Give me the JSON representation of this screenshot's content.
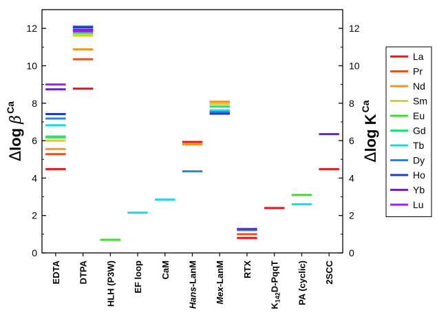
{
  "chart_data": {
    "type": "scatter",
    "marker": "horizontal-dash",
    "categories": [
      "EDTA",
      "DTPA",
      "HLH (P3W)",
      "EF loop",
      "CaM",
      "Hans-LanM",
      "Mex-LanM",
      "RTX",
      "K142D-PqqT",
      "PA (cyclic)",
      "2SCC"
    ],
    "category_italic_prefix": [
      "",
      "",
      "",
      "",
      "",
      "Hans",
      "Mex",
      "",
      "",
      "",
      ""
    ],
    "ylabel_left": {
      "symbol": "Δ",
      "main": "log ",
      "greek": "β",
      "sup": "Ca"
    },
    "ylabel_right": {
      "symbol": "Δ",
      "main": "log K",
      "sup": "Ca"
    },
    "ylim": [
      0,
      13
    ],
    "yticks": [
      0,
      2,
      4,
      6,
      8,
      10,
      12
    ],
    "legend_position": "right",
    "series": [
      {
        "name": "La",
        "color": "#e8141c",
        "values": [
          4.48,
          8.78,
          null,
          null,
          null,
          5.93,
          null,
          0.8,
          2.4,
          null,
          4.48
        ]
      },
      {
        "name": "Pr",
        "color": "#f0501e",
        "values": [
          5.28,
          10.35,
          null,
          null,
          null,
          null,
          null,
          1.0,
          null,
          null,
          null
        ]
      },
      {
        "name": "Nd",
        "color": "#f59420",
        "values": [
          5.55,
          10.88,
          null,
          null,
          null,
          5.8,
          8.08,
          null,
          null,
          null,
          null
        ]
      },
      {
        "name": "Sm",
        "color": "#d4d21a",
        "values": [
          6.0,
          11.62,
          null,
          null,
          null,
          null,
          7.96,
          null,
          null,
          null,
          null
        ]
      },
      {
        "name": "Eu",
        "color": "#3cdc28",
        "values": [
          6.18,
          null,
          0.7,
          null,
          null,
          null,
          null,
          null,
          null,
          3.1,
          null
        ]
      },
      {
        "name": "Gd",
        "color": "#22e07a",
        "values": [
          6.22,
          11.75,
          null,
          null,
          null,
          null,
          7.82,
          null,
          null,
          null,
          null
        ]
      },
      {
        "name": "Tb",
        "color": "#1ed8e6",
        "values": [
          6.82,
          12.05,
          null,
          2.15,
          2.85,
          null,
          7.62,
          null,
          null,
          2.6,
          null
        ]
      },
      {
        "name": "Dy",
        "color": "#2086e8",
        "values": [
          7.18,
          12.1,
          null,
          null,
          null,
          4.36,
          7.52,
          1.22,
          null,
          null,
          null
        ]
      },
      {
        "name": "Ho",
        "color": "#2038d8",
        "values": [
          7.42,
          12.05,
          null,
          null,
          null,
          null,
          7.44,
          null,
          null,
          null,
          null
        ]
      },
      {
        "name": "Yb",
        "color": "#6a22d0",
        "values": [
          8.74,
          11.92,
          null,
          null,
          null,
          null,
          null,
          1.28,
          null,
          null,
          6.35
        ]
      },
      {
        "name": "Lu",
        "color": "#9b22e6",
        "values": [
          9.0,
          11.85,
          null,
          null,
          null,
          null,
          null,
          null,
          null,
          null,
          null
        ]
      }
    ]
  }
}
